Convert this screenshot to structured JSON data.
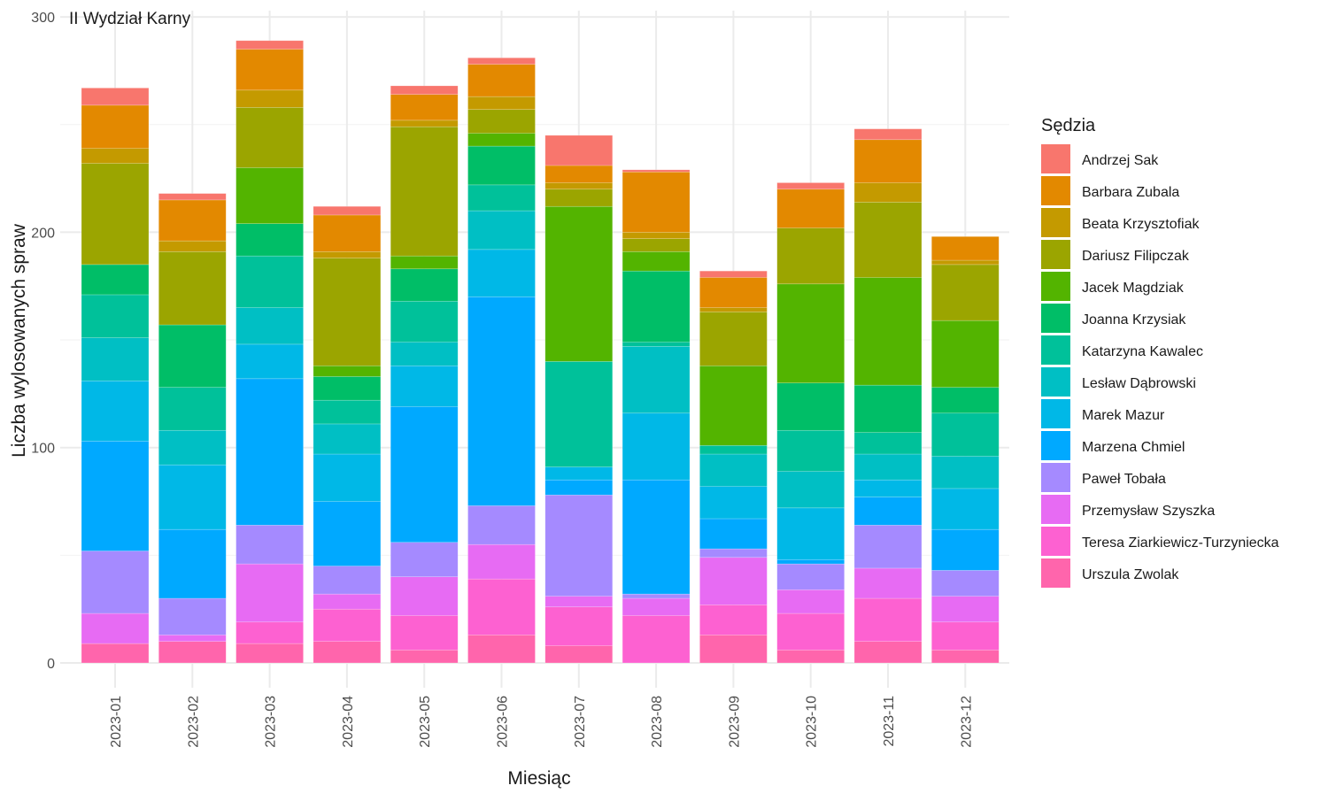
{
  "chart_data": {
    "type": "bar",
    "stacked": true,
    "title": "II Wydział Karny",
    "xlabel": "Miesiąc",
    "ylabel": "Liczba wylosowanych spraw",
    "ylim": [
      0,
      300
    ],
    "yticks": [
      0,
      100,
      200,
      300
    ],
    "grid": true,
    "legend_title": "Sędzia",
    "legend_position": "right",
    "categories": [
      "2023-01",
      "2023-02",
      "2023-03",
      "2023-04",
      "2023-05",
      "2023-06",
      "2023-07",
      "2023-08",
      "2023-09",
      "2023-10",
      "2023-11",
      "2023-12"
    ],
    "series": [
      {
        "name": "Urszula Zwolak",
        "color": "#FF65AC",
        "values": [
          9,
          10,
          9,
          10,
          6,
          13,
          8,
          0,
          13,
          6,
          10,
          6
        ]
      },
      {
        "name": "Teresa Ziarkiewicz-Turzyniecka",
        "color": "#FD61D1",
        "values": [
          0,
          0,
          10,
          15,
          16,
          26,
          18,
          22,
          14,
          17,
          20,
          13
        ]
      },
      {
        "name": "Przemysław Szyszka",
        "color": "#E76BF3",
        "values": [
          14,
          3,
          27,
          7,
          18,
          16,
          5,
          8,
          22,
          11,
          14,
          12
        ]
      },
      {
        "name": "Paweł Tobała",
        "color": "#A58AFF",
        "values": [
          29,
          17,
          18,
          13,
          16,
          18,
          47,
          2,
          4,
          12,
          20,
          12
        ]
      },
      {
        "name": "Marzena Chmiel",
        "color": "#00A9FF",
        "values": [
          51,
          32,
          68,
          30,
          63,
          97,
          7,
          53,
          14,
          2,
          13,
          19
        ]
      },
      {
        "name": "Marek Mazur",
        "color": "#00B8E7",
        "values": [
          28,
          30,
          16,
          22,
          19,
          22,
          6,
          31,
          15,
          24,
          8,
          19
        ]
      },
      {
        "name": "Lesław Dąbrowski",
        "color": "#00BFC4",
        "values": [
          20,
          16,
          17,
          14,
          11,
          18,
          0,
          31,
          15,
          17,
          12,
          15
        ]
      },
      {
        "name": "Katarzyna Kawalec",
        "color": "#00C19A",
        "values": [
          20,
          20,
          24,
          11,
          19,
          12,
          49,
          2,
          4,
          19,
          10,
          20
        ]
      },
      {
        "name": "Joanna Krzysiak",
        "color": "#00BE67",
        "values": [
          14,
          29,
          15,
          11,
          15,
          18,
          0,
          33,
          0,
          22,
          22,
          12
        ]
      },
      {
        "name": "Jacek Magdziak",
        "color": "#53B400",
        "values": [
          0,
          0,
          26,
          5,
          6,
          6,
          72,
          9,
          37,
          46,
          50,
          31
        ]
      },
      {
        "name": "Dariusz Filipczak",
        "color": "#9BA500",
        "values": [
          47,
          34,
          28,
          50,
          60,
          11,
          8,
          6,
          25,
          26,
          35,
          26
        ]
      },
      {
        "name": "Beata Krzysztofiak",
        "color": "#C49A00",
        "values": [
          7,
          5,
          8,
          3,
          3,
          6,
          3,
          3,
          2,
          0,
          9,
          2
        ]
      },
      {
        "name": "Barbara Zubala",
        "color": "#E38900",
        "values": [
          20,
          19,
          19,
          17,
          12,
          15,
          8,
          28,
          14,
          18,
          20,
          11
        ]
      },
      {
        "name": "Andrzej Sak",
        "color": "#F8766D",
        "values": [
          8,
          3,
          4,
          4,
          4,
          3,
          14,
          1,
          3,
          3,
          5,
          0
        ]
      }
    ]
  }
}
